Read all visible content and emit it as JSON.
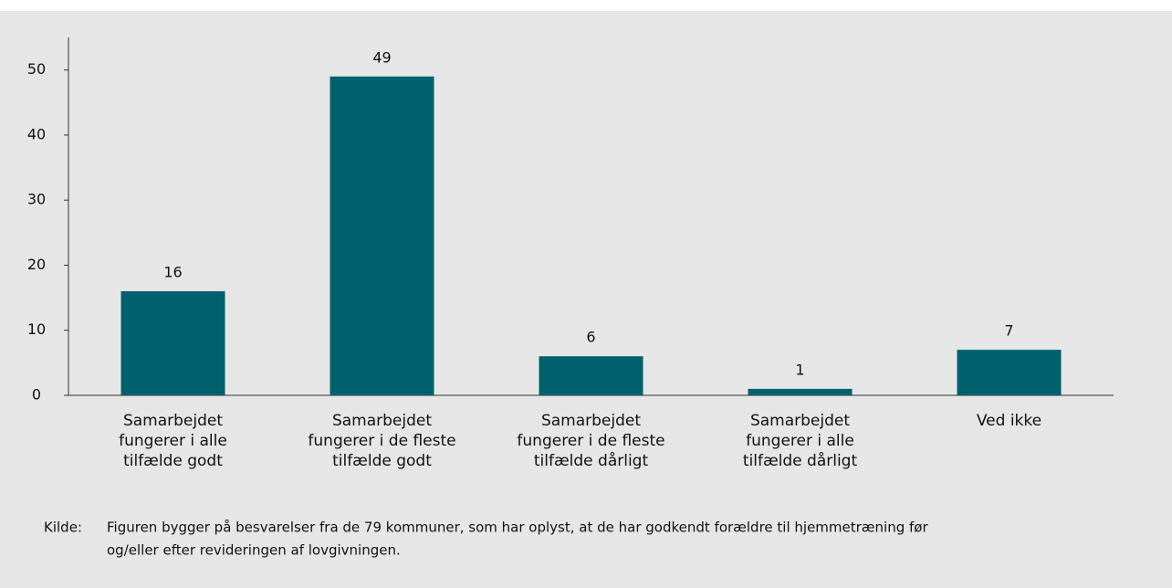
{
  "chart_data": {
    "type": "bar",
    "categories": [
      [
        "Samarbejdet",
        "fungerer i alle",
        "tilfælde godt"
      ],
      [
        "Samarbejdet",
        "fungerer i de fleste",
        "tilfælde godt"
      ],
      [
        "Samarbejdet",
        "fungerer i de fleste",
        "tilfælde dårligt"
      ],
      [
        "Samarbejdet",
        "fungerer i alle",
        "tilfælde dårligt"
      ],
      [
        "Ved ikke"
      ]
    ],
    "values": [
      16,
      49,
      6,
      1,
      7
    ],
    "color": "#00606e",
    "ylim": [
      0,
      55
    ],
    "yticks": [
      0,
      10,
      20,
      30,
      40,
      50
    ],
    "grid": false
  },
  "source": {
    "label": "Kilde:",
    "lines": [
      "Figuren bygger på besvarelser fra de 79 kommuner, som har oplyst, at de har godkendt forældre til hjemmetræning før",
      "og/eller efter revideringen af lovgivningen."
    ]
  }
}
